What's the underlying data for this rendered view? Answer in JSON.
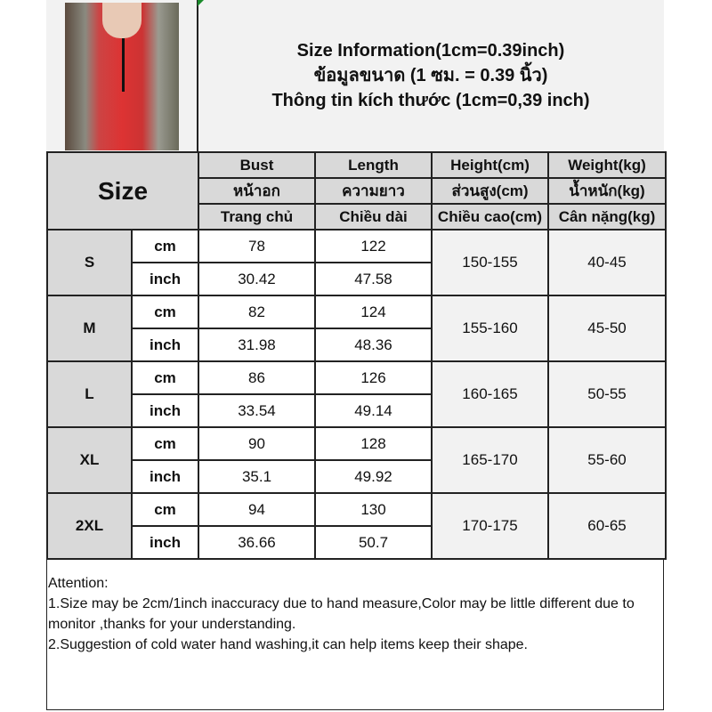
{
  "header": {
    "title_en": "Size Information(1cm=0.39inch)",
    "title_th": "ข้อมูลขนาด (1 ซม. = 0.39 นิ้ว)",
    "title_vi": "Thông tin kích thước (1cm=0,39 inch)"
  },
  "table": {
    "size_label": "Size",
    "columns": [
      {
        "en": "Bust",
        "th": "หน้าอก",
        "vi": "Trang chủ"
      },
      {
        "en": "Length",
        "th": "ความยาว",
        "vi": "Chiều dài"
      },
      {
        "en": "Height(cm)",
        "th": "ส่วนสูง(cm)",
        "vi": "Chiều cao(cm)"
      },
      {
        "en": "Weight(kg)",
        "th": "น้ำหนัก(kg)",
        "vi": "Cân nặng(kg)"
      }
    ],
    "unit_cm": "cm",
    "unit_inch": "inch",
    "rows": [
      {
        "size": "S",
        "bust_cm": "78",
        "length_cm": "122",
        "bust_inch": "30.42",
        "length_inch": "47.58",
        "height": "150-155",
        "weight": "40-45"
      },
      {
        "size": "M",
        "bust_cm": "82",
        "length_cm": "124",
        "bust_inch": "31.98",
        "length_inch": "48.36",
        "height": "155-160",
        "weight": "45-50"
      },
      {
        "size": "L",
        "bust_cm": "86",
        "length_cm": "126",
        "bust_inch": "33.54",
        "length_inch": "49.14",
        "height": "160-165",
        "weight": "50-55"
      },
      {
        "size": "XL",
        "bust_cm": "90",
        "length_cm": "128",
        "bust_inch": "35.1",
        "length_inch": "49.92",
        "height": "165-170",
        "weight": "55-60"
      },
      {
        "size": "2XL",
        "bust_cm": "94",
        "length_cm": "130",
        "bust_inch": "36.66",
        "length_inch": "50.7",
        "height": "170-175",
        "weight": "60-65"
      }
    ]
  },
  "attention": {
    "heading": "Attention:",
    "note1": "1.Size may be 2cm/1inch inaccuracy due to hand measure,Color may be little different due to monitor ,thanks for your understanding.",
    "note2": "2.Suggestion of cold water hand washing,it can help items keep their shape."
  },
  "colors": {
    "header_bg": "#d9d9d9",
    "merged_bg": "#f2f2f2",
    "border": "#222222",
    "dress": "#cc3333"
  }
}
